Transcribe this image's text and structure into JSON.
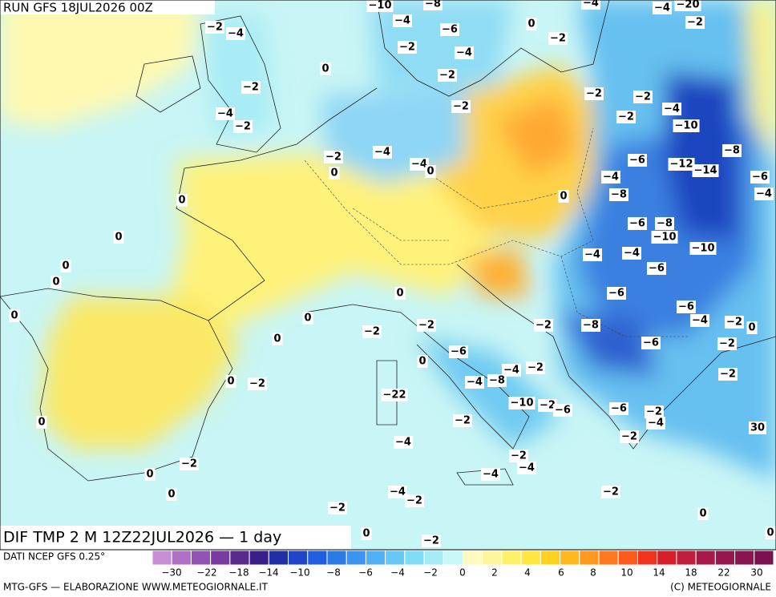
{
  "header": {
    "run": "RUN GFS 18JUL2026 00Z"
  },
  "map": {
    "title": "DIF TMP 2 M 12Z22JUL2026 — 1 day",
    "contour_labels": [
      "−10",
      "−8",
      "−4",
      "−4",
      "−20",
      "−2",
      "−2",
      "−4",
      "−4",
      "0",
      "−6",
      "−2",
      "−2",
      "−4",
      "0",
      "−2",
      "−2",
      "−2",
      "−2",
      "−4",
      "−2",
      "−4",
      "−2",
      "−10",
      "−2",
      "−4",
      "−8",
      "−2",
      "−6",
      "−12",
      "−14",
      "−4",
      "0",
      "0",
      "−4",
      "−6",
      "−8",
      "0",
      "−4",
      "0",
      "−6",
      "−8",
      "−10",
      "0",
      "−10",
      "−4",
      "−4",
      "0",
      "−6",
      "0",
      "−6",
      "0",
      "−6",
      "0",
      "0",
      "−2",
      "−4",
      "−2",
      "0",
      "−2",
      "−2",
      "−8",
      "0",
      "−6",
      "−6",
      "−2",
      "0",
      "−4",
      "−2",
      "−2",
      "0",
      "−2",
      "−4",
      "−8",
      "−22",
      "−10",
      "−2",
      "−6",
      "−6",
      "−2",
      "−4",
      "0",
      "−2",
      "30",
      "−2",
      "−4",
      "−2",
      "−2",
      "−4",
      "0",
      "−4",
      "0",
      "−4",
      "−2",
      "−2",
      "−2",
      "0",
      "0",
      "−2",
      "0"
    ]
  },
  "legend": {
    "source": "DATI NCEP GFS 0.25°",
    "colors": [
      "#c98fd6",
      "#b070c8",
      "#9353b5",
      "#7a3aa0",
      "#5a2a8c",
      "#3a1e8a",
      "#1e2fa8",
      "#1f45c8",
      "#1f5ee0",
      "#2a7ae8",
      "#3b94ef",
      "#4fb0f3",
      "#66c8f5",
      "#80dcf5",
      "#a3ecf5",
      "#c8f8f8",
      "#fffbc0",
      "#fff59a",
      "#fff06a",
      "#ffe640",
      "#ffd21e",
      "#ffb81e",
      "#ff9a1e",
      "#ff7a1e",
      "#ff5a1e",
      "#f0321e",
      "#d81e2a",
      "#c01e3a",
      "#a8184a",
      "#98164e",
      "#8a1450",
      "#7a1050"
    ],
    "ticks": [
      {
        "value": -30,
        "label": "−30"
      },
      {
        "value": -22,
        "label": "−22"
      },
      {
        "value": -18,
        "label": "−18"
      },
      {
        "value": -14,
        "label": "−14"
      },
      {
        "value": -10,
        "label": "−10"
      },
      {
        "value": -8,
        "label": "−8"
      },
      {
        "value": -6,
        "label": "−6"
      },
      {
        "value": -4,
        "label": "−4"
      },
      {
        "value": -2,
        "label": "−2"
      },
      0,
      2,
      4,
      6,
      8,
      10,
      14,
      18,
      22,
      30
    ]
  },
  "footer": {
    "left": "MTG-GFS — ELABORAZIONE WWW.METEOGIORNALE.IT",
    "right": "(C) METEOGIORNALE"
  }
}
